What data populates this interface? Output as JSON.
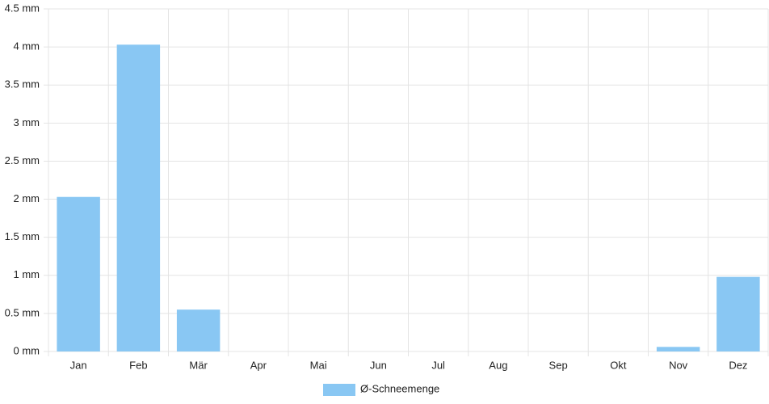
{
  "chart_data": {
    "type": "bar",
    "categories": [
      "Jan",
      "Feb",
      "Mär",
      "Apr",
      "Mai",
      "Jun",
      "Jul",
      "Aug",
      "Sep",
      "Okt",
      "Nov",
      "Dez"
    ],
    "series": [
      {
        "name": "Ø-Schneemenge",
        "color": "#89c7f3",
        "values": [
          2.03,
          4.03,
          0.55,
          0,
          0,
          0,
          0,
          0,
          0,
          0,
          0.06,
          0.98
        ]
      }
    ],
    "ylim": [
      0,
      4.5
    ],
    "yticks": [
      {
        "value": 0,
        "label": "0 mm"
      },
      {
        "value": 0.5,
        "label": "0.5 mm"
      },
      {
        "value": 1,
        "label": "1 mm"
      },
      {
        "value": 1.5,
        "label": "1.5 mm"
      },
      {
        "value": 2,
        "label": "2 mm"
      },
      {
        "value": 2.5,
        "label": "2.5 mm"
      },
      {
        "value": 3,
        "label": "3 mm"
      },
      {
        "value": 3.5,
        "label": "3.5 mm"
      },
      {
        "value": 4,
        "label": "4 mm"
      },
      {
        "value": 4.5,
        "label": "4.5 mm"
      }
    ],
    "grid": true,
    "legend": "bottom"
  }
}
